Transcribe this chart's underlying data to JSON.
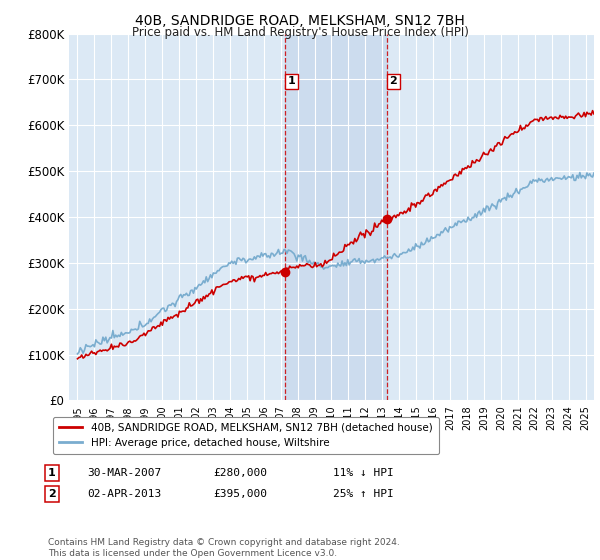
{
  "title": "40B, SANDRIDGE ROAD, MELKSHAM, SN12 7BH",
  "subtitle": "Price paid vs. HM Land Registry's House Price Index (HPI)",
  "legend_line1": "40B, SANDRIDGE ROAD, MELKSHAM, SN12 7BH (detached house)",
  "legend_line2": "HPI: Average price, detached house, Wiltshire",
  "sale1_date": "30-MAR-2007",
  "sale1_price": 280000,
  "sale1_hpi": "11% ↓ HPI",
  "sale1_year": 2007.25,
  "sale2_date": "02-APR-2013",
  "sale2_price": 395000,
  "sale2_hpi": "25% ↑ HPI",
  "sale2_year": 2013.25,
  "footnote": "Contains HM Land Registry data © Crown copyright and database right 2024.\nThis data is licensed under the Open Government Licence v3.0.",
  "ylim": [
    0,
    800000
  ],
  "xlim_start": 1994.5,
  "xlim_end": 2025.5,
  "background_color": "#ffffff",
  "plot_background": "#dce9f5",
  "grid_color": "#ffffff",
  "red_color": "#cc0000",
  "blue_color": "#7aadcf",
  "shade_color": "#ccdcee",
  "marker_border_color": "#cc0000"
}
